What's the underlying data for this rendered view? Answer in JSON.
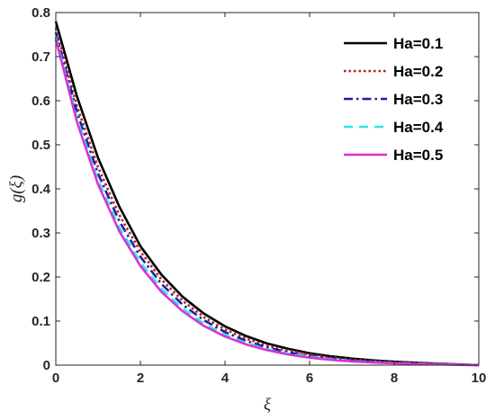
{
  "chart_data": {
    "type": "line",
    "xlabel": "ξ",
    "ylabel": "g(ξ)",
    "xlim": [
      0,
      10
    ],
    "ylim": [
      0,
      0.8
    ],
    "xticks": [
      "0",
      "2",
      "4",
      "6",
      "8",
      "10"
    ],
    "yticks": [
      "0",
      "0.1",
      "0.2",
      "0.3",
      "0.4",
      "0.5",
      "0.6",
      "0.7",
      "0.8"
    ],
    "grid": false,
    "legend_position": "top-right",
    "x": [
      0,
      0.5,
      1,
      1.5,
      2,
      2.5,
      3,
      3.5,
      4,
      4.5,
      5,
      5.5,
      6,
      6.5,
      7,
      7.5,
      8,
      8.5,
      9,
      9.5,
      10
    ],
    "series": [
      {
        "name": "Ha=0.1",
        "color": "#000000",
        "dash": "solid",
        "values": [
          0.78,
          0.61,
          0.47,
          0.36,
          0.27,
          0.205,
          0.155,
          0.117,
          0.088,
          0.066,
          0.049,
          0.037,
          0.027,
          0.02,
          0.015,
          0.011,
          0.0078,
          0.0055,
          0.0036,
          0.0018,
          0.0
        ]
      },
      {
        "name": "Ha=0.2",
        "color": "#b22222",
        "dash": "dotted",
        "values": [
          0.765,
          0.588,
          0.449,
          0.341,
          0.258,
          0.194,
          0.146,
          0.109,
          0.081,
          0.06,
          0.044,
          0.033,
          0.024,
          0.0175,
          0.0127,
          0.0092,
          0.0065,
          0.0045,
          0.0029,
          0.0014,
          0.0
        ]
      },
      {
        "name": "Ha=0.3",
        "color": "#1f1fa0",
        "dash": "dashdot",
        "values": [
          0.755,
          0.574,
          0.434,
          0.327,
          0.246,
          0.184,
          0.137,
          0.102,
          0.075,
          0.055,
          0.04,
          0.029,
          0.021,
          0.015,
          0.011,
          0.0078,
          0.0055,
          0.0037,
          0.0024,
          0.0012,
          0.0
        ]
      },
      {
        "name": "Ha=0.4",
        "color": "#2ee6e6",
        "dash": "dashed",
        "values": [
          0.745,
          0.56,
          0.419,
          0.313,
          0.233,
          0.173,
          0.128,
          0.094,
          0.069,
          0.05,
          0.036,
          0.026,
          0.019,
          0.0135,
          0.0095,
          0.0067,
          0.0047,
          0.0032,
          0.0021,
          0.001,
          0.0
        ]
      },
      {
        "name": "Ha=0.5",
        "color": "#d633d6",
        "dash": "solid",
        "values": [
          0.74,
          0.552,
          0.41,
          0.304,
          0.225,
          0.166,
          0.122,
          0.089,
          0.065,
          0.047,
          0.034,
          0.024,
          0.017,
          0.012,
          0.0085,
          0.006,
          0.0042,
          0.0028,
          0.0018,
          0.0009,
          0.0
        ]
      }
    ]
  }
}
